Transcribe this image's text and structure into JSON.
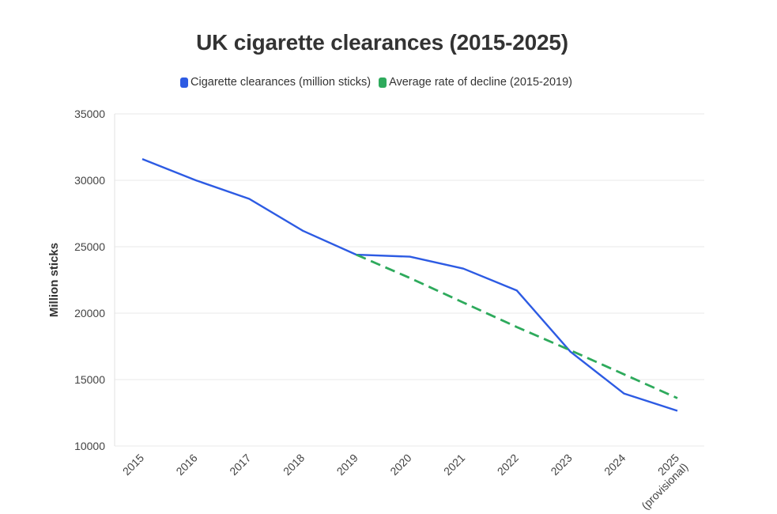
{
  "chart_data": {
    "type": "line",
    "title": "UK cigarette clearances (2015-2025)",
    "xlabel": "",
    "ylabel": "Million sticks",
    "categories": [
      "2015",
      "2016",
      "2017",
      "2018",
      "2019",
      "2020",
      "2021",
      "2022",
      "2023",
      "2024",
      "2025\n(provisional)"
    ],
    "ylim": [
      10000,
      35000
    ],
    "yticks": [
      "10000",
      "15000",
      "20000",
      "25000",
      "30000",
      "35000"
    ],
    "grid": true,
    "legend_position": "top-center",
    "series": [
      {
        "name": "Cigarette clearances (million sticks)",
        "color": "#2d5be3",
        "dash": "solid",
        "values": [
          31600,
          30000,
          28600,
          26200,
          24400,
          24250,
          23350,
          21700,
          17100,
          13950,
          12650
        ]
      },
      {
        "name": "Average rate of decline (2015-2019)",
        "color": "#2eaa5c",
        "dash": "dashed",
        "values": [
          null,
          null,
          null,
          null,
          24400,
          22650,
          20800,
          18950,
          17200,
          15400,
          13600
        ]
      }
    ]
  }
}
